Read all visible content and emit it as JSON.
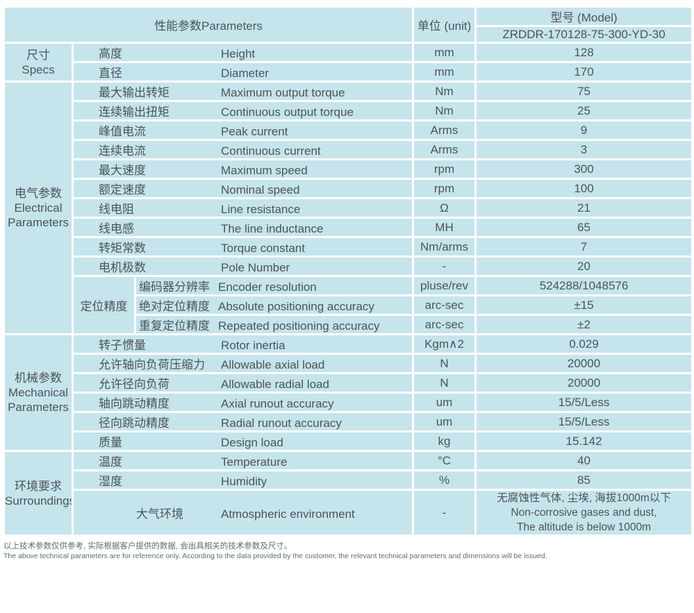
{
  "header": {
    "parameters_label": "性能参数Parameters",
    "unit_label": "单位 (unit)",
    "model_label": "型号 (Model)",
    "model_value": "ZRDDR-170128-75-300-YD-30"
  },
  "sections": [
    {
      "label_zh": "尺寸",
      "label_en": [
        "Specs"
      ],
      "rows": [
        {
          "zh": "高度",
          "en": "Height",
          "unit": "mm",
          "value": "128"
        },
        {
          "zh": "直径",
          "en": "Diameter",
          "unit": "mm",
          "value": "170"
        }
      ]
    },
    {
      "label_zh": "电气参数",
      "label_en": [
        "Electrical",
        "Parameters"
      ],
      "rows": [
        {
          "zh": "最大输出转矩",
          "en": "Maximum output torque",
          "unit": "Nm",
          "value": "75"
        },
        {
          "zh": "连续输出扭矩",
          "en": "Continuous output torque",
          "unit": "Nm",
          "value": "25"
        },
        {
          "zh": "峰值电流",
          "en": "Peak current",
          "unit": "Arms",
          "value": "9"
        },
        {
          "zh": "连续电流",
          "en": "Continuous current",
          "unit": "Arms",
          "value": "3"
        },
        {
          "zh": "最大速度",
          "en": "Maximum speed",
          "unit": "rpm",
          "value": "300"
        },
        {
          "zh": "额定速度",
          "en": "Nominal speed",
          "unit": "rpm",
          "value": "100"
        },
        {
          "zh": "线电阻",
          "en": "Line resistance",
          "unit": "Ω",
          "value": "21"
        },
        {
          "zh": "线电感",
          "en": "The line inductance",
          "unit": "MH",
          "value": "65"
        },
        {
          "zh": "转矩常数",
          "en": "Torque constant",
          "unit": "Nm/arms",
          "value": "7"
        },
        {
          "zh": "电机极数",
          "en": "Pole Number",
          "unit": "-",
          "value": "20"
        }
      ],
      "subgroup": {
        "label_zh": "定位精度",
        "rows": [
          {
            "zh": "编码器分辨率",
            "en": "Encoder resolution",
            "unit": "pluse/rev",
            "value": "524288/1048576"
          },
          {
            "zh": "绝对定位精度",
            "en": "Absolute positioning accuracy",
            "unit": "arc-sec",
            "value": "±15"
          },
          {
            "zh": "重复定位精度",
            "en": "Repeated positioning accuracy",
            "unit": "arc-sec",
            "value": "±2"
          }
        ]
      }
    },
    {
      "label_zh": "机械参数",
      "label_en": [
        "Mechanical",
        "Parameters"
      ],
      "rows": [
        {
          "zh": "转子惯量",
          "en": "Rotor inertia",
          "unit": "Kgm∧2",
          "value": "0.029"
        },
        {
          "zh": "允许轴向负荷压缩力",
          "en": "Allowable axial load",
          "unit": "N",
          "value": "20000"
        },
        {
          "zh": "允许径向负荷",
          "en": "Allowable radial load",
          "unit": "N",
          "value": "20000"
        },
        {
          "zh": "轴向跳动精度",
          "en": "Axial runout accuracy",
          "unit": "um",
          "value": "15/5/Less"
        },
        {
          "zh": "径向跳动精度",
          "en": "Radial runout accuracy",
          "unit": "um",
          "value": "15/5/Less"
        },
        {
          "zh": "质量",
          "en": "Design load",
          "unit": "kg",
          "value": "15.142"
        }
      ]
    },
    {
      "label_zh": "环境要求",
      "label_en": [
        "Surroundings"
      ],
      "rows": [
        {
          "zh": "温度",
          "en": "Temperature",
          "unit": "°C",
          "value": "40"
        },
        {
          "zh": "湿度",
          "en": "Humidity",
          "unit": "%",
          "value": "85"
        },
        {
          "zh": "大气环境",
          "en": "Atmospheric environment",
          "unit": "-",
          "centered_label": true,
          "value_lines": [
            "无腐蚀性气体, 尘埃, 海拔1000m以下",
            "Non-corrosive gases and dust,",
            "The altitude is below 1000m"
          ]
        }
      ]
    }
  ],
  "footnote": {
    "zh": "以上技术参数仅供参考, 实际根据客户提供的数据, 会出具相关的技术参数及尺寸。",
    "en": "The above technical parameters are for reference only. According to the data provided by the customer, the relevant technical parameters and dimensions will be issued."
  },
  "colors": {
    "header_bg": "#99d6ce",
    "body_bg": "#c6e4ec",
    "border": "#ffffff",
    "text": "#4a5557",
    "footnote_text": "#5e6c6c"
  }
}
